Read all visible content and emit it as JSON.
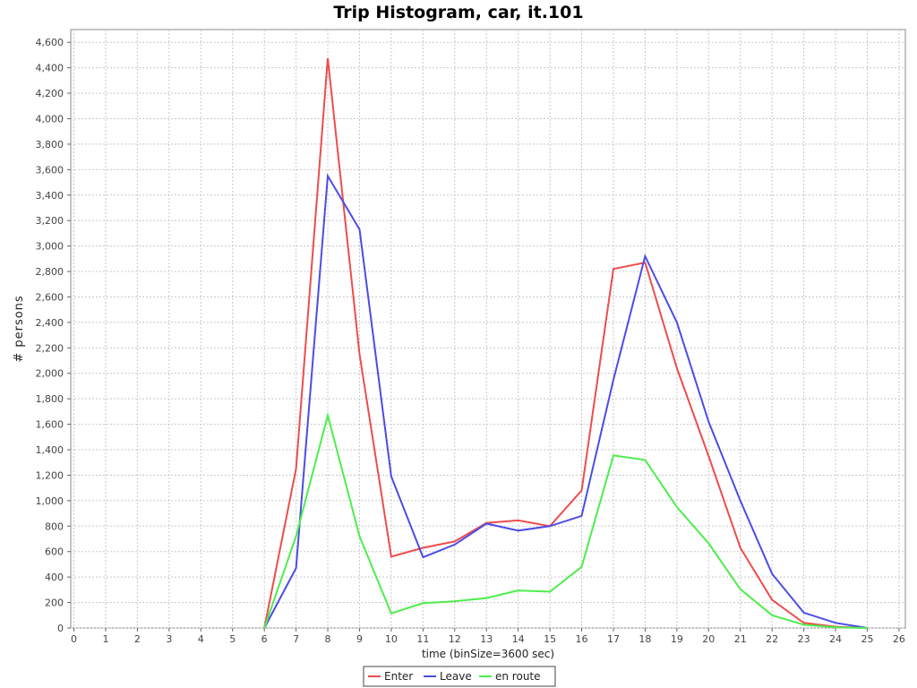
{
  "chart_data": {
    "type": "line",
    "title": "Trip Histogram, car, it.101",
    "xlabel": "time (binSize=3600 sec)",
    "ylabel": "# persons",
    "xlim": [
      -0.1,
      26.2
    ],
    "ylim": [
      0,
      4700
    ],
    "x_ticks": [
      0,
      1,
      2,
      3,
      4,
      5,
      6,
      7,
      8,
      9,
      10,
      11,
      12,
      13,
      14,
      15,
      16,
      17,
      18,
      19,
      20,
      21,
      22,
      23,
      24,
      25,
      26
    ],
    "y_ticks": [
      0,
      200,
      400,
      600,
      800,
      1000,
      1200,
      1400,
      1600,
      1800,
      2000,
      2200,
      2400,
      2600,
      2800,
      3000,
      3200,
      3400,
      3600,
      3800,
      4000,
      4200,
      4400,
      4600
    ],
    "y_tick_labels": [
      "0",
      "200",
      "400",
      "600",
      "800",
      "1,000",
      "1,200",
      "1,400",
      "1,600",
      "1,800",
      "2,000",
      "2,200",
      "2,400",
      "2,600",
      "2,800",
      "3,000",
      "3,200",
      "3,400",
      "3,600",
      "3,800",
      "4,000",
      "4,200",
      "4,400",
      "4,600"
    ],
    "grid": true,
    "legend_position": "bottom-center",
    "x": [
      6,
      7,
      8,
      9,
      10,
      11,
      12,
      13,
      14,
      15,
      16,
      17,
      18,
      19,
      20,
      21,
      22,
      23,
      24,
      25
    ],
    "series": [
      {
        "name": "Enter",
        "color": "#ee4c4c",
        "values": [
          0,
          1250,
          4475,
          2150,
          560,
          630,
          680,
          825,
          845,
          800,
          1080,
          2820,
          2870,
          2040,
          1350,
          630,
          220,
          40,
          10,
          0
        ]
      },
      {
        "name": "Leave",
        "color": "#4c4ce6",
        "values": [
          0,
          470,
          3550,
          3130,
          1190,
          555,
          655,
          820,
          765,
          800,
          880,
          1950,
          2920,
          2400,
          1620,
          1000,
          425,
          120,
          40,
          0
        ]
      },
      {
        "name": "en route",
        "color": "#4cee4c",
        "values": [
          0,
          720,
          1670,
          720,
          115,
          195,
          210,
          235,
          295,
          285,
          480,
          1355,
          1320,
          950,
          665,
          305,
          100,
          25,
          5,
          0
        ]
      }
    ]
  }
}
